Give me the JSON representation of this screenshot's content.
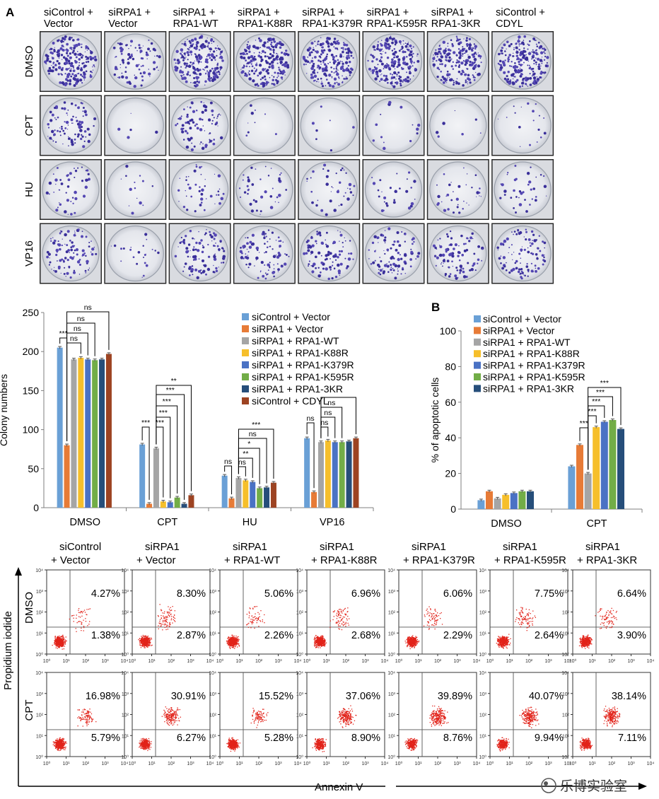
{
  "panel_a": "A",
  "panel_b": "B",
  "plates": {
    "col_labels": [
      [
        "siControl +",
        "Vector"
      ],
      [
        "siRPA1 +",
        "Vector"
      ],
      [
        "siRPA1 +",
        "RPA1-WT"
      ],
      [
        "siRPA1 +",
        "RPA1-K88R"
      ],
      [
        "siRPA1 +",
        "RPA1-K379R"
      ],
      [
        "siRPA1 +",
        "RPA1-K595R"
      ],
      [
        "siRPA1 +",
        "RPA1-3KR"
      ],
      [
        "siControl +",
        "CDYL"
      ]
    ],
    "row_labels": [
      "DMSO",
      "CPT",
      "HU",
      "VP16"
    ],
    "densities": [
      [
        1.0,
        0.4,
        1.0,
        0.95,
        0.95,
        0.95,
        0.95,
        1.0
      ],
      [
        0.4,
        0.02,
        0.38,
        0.04,
        0.03,
        0.06,
        0.03,
        0.08
      ],
      [
        0.2,
        0.06,
        0.19,
        0.18,
        0.17,
        0.12,
        0.16,
        0.16
      ],
      [
        0.45,
        0.1,
        0.42,
        0.43,
        0.42,
        0.42,
        0.42,
        0.45
      ]
    ]
  },
  "legend_series": [
    "siControl + Vector",
    "siRPA1 + Vector",
    "siRPA1 + RPA1-WT",
    "siRPA1 + RPA1-K88R",
    "siRPA1 + RPA1-K379R",
    "siRPA1 + RPA1-K595R",
    "siRPA1 + RPA1-3KR",
    "siControl + CDYL"
  ],
  "colors": [
    "#6aa0d6",
    "#e77b37",
    "#a5a5a5",
    "#f6bf2b",
    "#4a72c4",
    "#72ad47",
    "#264e7a",
    "#9d4322"
  ],
  "chart_data": [
    {
      "type": "bar",
      "title": "",
      "ylabel": "Colony numbers",
      "ylim": [
        0,
        250
      ],
      "yticks": [
        0,
        50,
        100,
        150,
        200,
        250
      ],
      "categories": [
        "DMSO",
        "CPT",
        "HU",
        "VP16"
      ],
      "series": [
        {
          "name": "siControl + Vector",
          "values": [
            205,
            81,
            41,
            89
          ]
        },
        {
          "name": "siRPA1 + Vector",
          "values": [
            80,
            5,
            12,
            20
          ]
        },
        {
          "name": "siRPA1 + RPA1-WT",
          "values": [
            190,
            76,
            38,
            84
          ]
        },
        {
          "name": "siRPA1 + RPA1-K88R",
          "values": [
            192,
            8,
            35,
            86
          ]
        },
        {
          "name": "siRPA1 + RPA1-K379R",
          "values": [
            190,
            7,
            33,
            84
          ]
        },
        {
          "name": "siRPA1 + RPA1-K595R",
          "values": [
            189,
            13,
            25,
            84
          ]
        },
        {
          "name": "siRPA1 + RPA1-3KR",
          "values": [
            190,
            5,
            26,
            85
          ]
        },
        {
          "name": "siControl + CDYL",
          "values": [
            197,
            16,
            32,
            89
          ]
        }
      ],
      "significance": [
        "***",
        "ns",
        "ns",
        "ns",
        "ns",
        "***",
        "***",
        "***",
        "***",
        "***",
        "**",
        "ns",
        "ns",
        "**",
        "*",
        "ns",
        "***",
        "ns",
        "ns",
        "ns",
        "ns"
      ]
    },
    {
      "type": "bar",
      "ylabel": "% of apoptotic cells",
      "ylim": [
        0,
        100
      ],
      "yticks": [
        0,
        20,
        40,
        60,
        80,
        100
      ],
      "categories": [
        "DMSO",
        "CPT"
      ],
      "series": [
        {
          "name": "siControl + Vector",
          "values": [
            5,
            24
          ]
        },
        {
          "name": "siRPA1 + Vector",
          "values": [
            10,
            36
          ]
        },
        {
          "name": "siRPA1 + RPA1-WT",
          "values": [
            6,
            20
          ]
        },
        {
          "name": "siRPA1 + RPA1-K88R",
          "values": [
            8,
            46
          ]
        },
        {
          "name": "siRPA1 + RPA1-K379R",
          "values": [
            9,
            49
          ]
        },
        {
          "name": "siRPA1 + RPA1-K595R",
          "values": [
            10,
            50
          ]
        },
        {
          "name": "siRPA1 + RPA1-3KR",
          "values": [
            10,
            45
          ]
        }
      ],
      "significance": [
        "***",
        "***",
        "***",
        "***",
        "***"
      ]
    }
  ],
  "flow": {
    "col_labels": [
      [
        "siControl",
        "+ Vector"
      ],
      [
        "siRPA1",
        "+ Vector"
      ],
      [
        "siRPA1",
        "+ RPA1-WT"
      ],
      [
        "siRPA1",
        "+ RPA1-K88R"
      ],
      [
        "siRPA1",
        "+ RPA1-K379R"
      ],
      [
        "siRPA1",
        "+ RPA1-K595R"
      ],
      [
        "siRPA1",
        "+ RPA1-3KR"
      ]
    ],
    "row_labels": [
      "DMSO",
      "CPT"
    ],
    "upper": [
      [
        "4.27%",
        "8.30%",
        "5.06%",
        "6.96%",
        "6.06%",
        "7.75%",
        "6.64%"
      ],
      [
        "16.98%",
        "30.91%",
        "15.52%",
        "37.06%",
        "39.89%",
        "40.07%",
        "38.14%"
      ]
    ],
    "lower": [
      [
        "1.38%",
        "2.87%",
        "2.26%",
        "2.68%",
        "2.29%",
        "2.64%",
        "3.90%"
      ],
      [
        "5.79%",
        "6.27%",
        "5.28%",
        "8.90%",
        "8.76%",
        "9.94%",
        "7.11%"
      ]
    ],
    "tick_labels": [
      "10⁰",
      "10¹",
      "10²",
      "10³",
      "10⁴"
    ],
    "x_axis": "Annexin V",
    "y_axis": "Propidium iodide"
  },
  "watermark": "乐博实验室"
}
